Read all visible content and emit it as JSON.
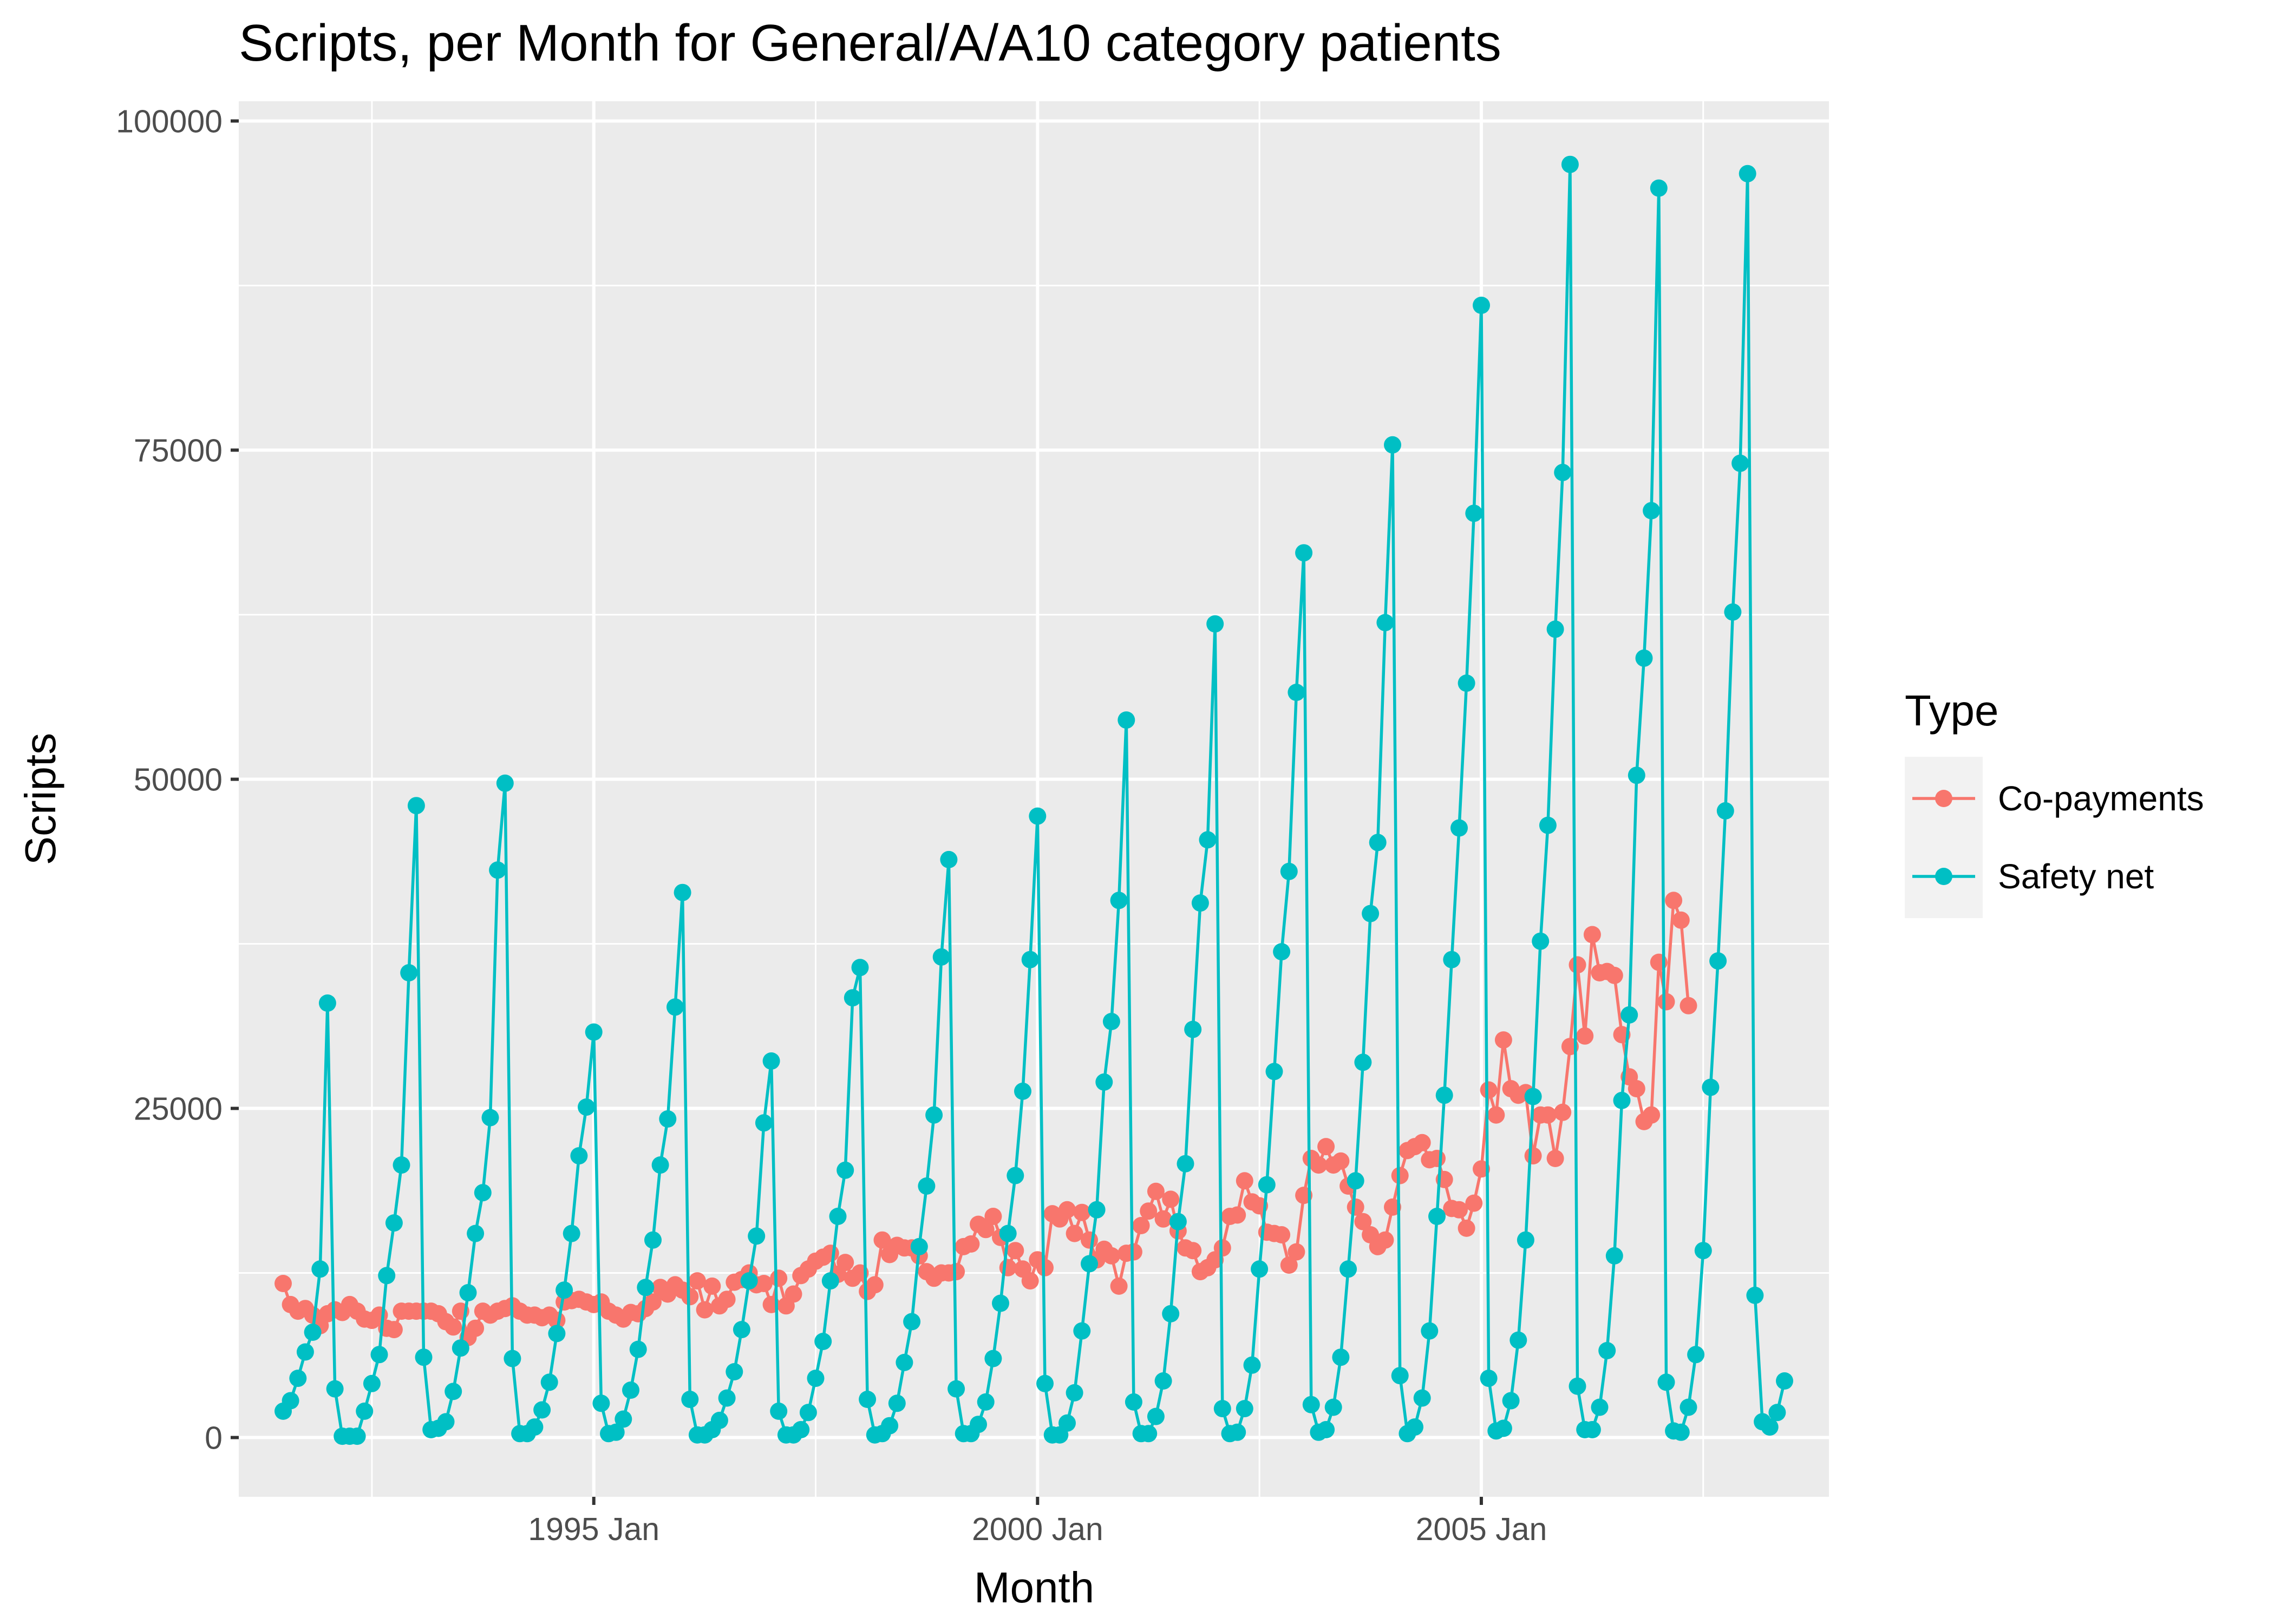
{
  "chart_data": {
    "type": "line",
    "title": "Scripts, per Month for General/A/A10 category patients",
    "xlabel": "Month",
    "ylabel": "Scripts",
    "x_start": "1991 Jul",
    "x_end": "2008 Jun",
    "xlim": [
      "1991 Jan",
      "2008 Dec"
    ],
    "ylim": [
      -4500,
      101500
    ],
    "x_ticks": [
      {
        "label": "1995 Jan",
        "date": "1995 Jan"
      },
      {
        "label": "2000 Jan",
        "date": "2000 Jan"
      },
      {
        "label": "2005 Jan",
        "date": "2005 Jan"
      }
    ],
    "y_ticks": [
      {
        "label": "0",
        "value": 0
      },
      {
        "label": "25000",
        "value": 25000
      },
      {
        "label": "50000",
        "value": 50000
      },
      {
        "label": "75000",
        "value": 75000
      },
      {
        "label": "100000",
        "value": 100000
      }
    ],
    "grid": true,
    "legend": {
      "title": "Type",
      "position": "right"
    },
    "series": [
      {
        "name": "Co-payments",
        "color": "#F8766D",
        "values": [
          11700,
          10100,
          9600,
          9800,
          9300,
          8500,
          9400,
          9700,
          9500,
          10100,
          9600,
          9000,
          8900,
          9300,
          8300,
          8200,
          9600,
          9600,
          9600,
          9600,
          9600,
          9400,
          8800,
          8400,
          9600,
          7600,
          8300,
          9600,
          9300,
          9600,
          9800,
          10000,
          9600,
          9300,
          9300,
          9100,
          9300,
          8900,
          10300,
          10400,
          10500,
          10300,
          10100,
          10300,
          9600,
          9300,
          9000,
          9500,
          9400,
          9800,
          10300,
          11400,
          10900,
          11600,
          11200,
          10700,
          11900,
          9700,
          11500,
          10000,
          10500,
          11800,
          12000,
          12500,
          11600,
          11700,
          10100,
          12100,
          10000,
          10900,
          12300,
          12800,
          13400,
          13700,
          14000,
          12400,
          13300,
          12100,
          12500,
          11100,
          11600,
          15000,
          13900,
          14600,
          14400,
          14400,
          13800,
          12600,
          12100,
          12500,
          12500,
          12600,
          14500,
          14700,
          16200,
          15800,
          16800,
          15200,
          12900,
          14200,
          12800,
          11900,
          13500,
          12900,
          17000,
          16600,
          17300,
          15500,
          17100,
          15000,
          13500,
          14300,
          13800,
          11500,
          14000,
          14100,
          16100,
          17200,
          18700,
          16600,
          18100,
          15700,
          14400,
          14200,
          12600,
          12900,
          13500,
          14400,
          16800,
          16900,
          19500,
          17900,
          17600,
          15600,
          15500,
          15400,
          13100,
          14100,
          18400,
          21200,
          20700,
          22100,
          20700,
          21000,
          19100,
          17500,
          16400,
          15400,
          14500,
          15000,
          17500,
          19900,
          21800,
          22100,
          22400,
          21100,
          21200,
          19600,
          17400,
          17300,
          15900,
          17800,
          20400,
          26400,
          24500,
          30200,
          26500,
          26000,
          26200,
          21400,
          24500,
          24500,
          21200,
          24700,
          29700,
          35900,
          30500,
          38200,
          35300,
          35400,
          35100,
          30600,
          27400,
          26500,
          24000,
          24500,
          36100,
          33100,
          40800,
          39300,
          32800
        ]
      },
      {
        "name": "Safety net",
        "color": "#00BFC4",
        "values": [
          2000,
          2800,
          4500,
          6500,
          8000,
          12800,
          33000,
          3700,
          100,
          100,
          100,
          2000,
          4100,
          6300,
          12300,
          16300,
          20700,
          35300,
          48000,
          6100,
          600,
          700,
          1200,
          3500,
          6800,
          11000,
          15500,
          18600,
          24300,
          43100,
          49700,
          6000,
          300,
          300,
          800,
          2100,
          4200,
          7900,
          11200,
          15500,
          21400,
          25100,
          30800,
          2600,
          300,
          400,
          1400,
          3600,
          6700,
          11400,
          15000,
          20700,
          24200,
          32700,
          41400,
          2900,
          200,
          200,
          600,
          1300,
          3000,
          5000,
          8200,
          11900,
          15300,
          23900,
          28600,
          2000,
          200,
          200,
          600,
          1900,
          4500,
          7300,
          11900,
          16800,
          20300,
          33400,
          35700,
          2900,
          200,
          300,
          900,
          2600,
          5700,
          8800,
          14500,
          19100,
          24500,
          36500,
          43900,
          3700,
          300,
          300,
          1000,
          2700,
          6000,
          10200,
          15500,
          19900,
          26300,
          36300,
          47200,
          4100,
          200,
          200,
          1100,
          3400,
          8100,
          13200,
          17300,
          27000,
          31600,
          40800,
          54500,
          2700,
          300,
          300,
          1600,
          4300,
          9400,
          16400,
          20800,
          31000,
          40600,
          45400,
          61800,
          2200,
          300,
          400,
          2200,
          5500,
          12800,
          19200,
          27800,
          36900,
          43000,
          56600,
          67200,
          2500,
          400,
          600,
          2300,
          6100,
          12800,
          19500,
          28500,
          39800,
          45200,
          61900,
          75400,
          4700,
          300,
          800,
          3000,
          8100,
          16800,
          26000,
          36300,
          46300,
          57300,
          70200,
          86000,
          4500,
          500,
          700,
          2800,
          7400,
          15000,
          25900,
          37700,
          46500,
          61400,
          73300,
          96700,
          3900,
          600,
          600,
          2300,
          6600,
          13800,
          25600,
          32100,
          50300,
          59200,
          70400,
          94900,
          4200,
          500,
          400,
          2300,
          6300,
          14200,
          26600,
          36200,
          47600,
          62700,
          74000,
          96000,
          10800,
          1200,
          800,
          1900,
          4300
        ]
      }
    ]
  }
}
